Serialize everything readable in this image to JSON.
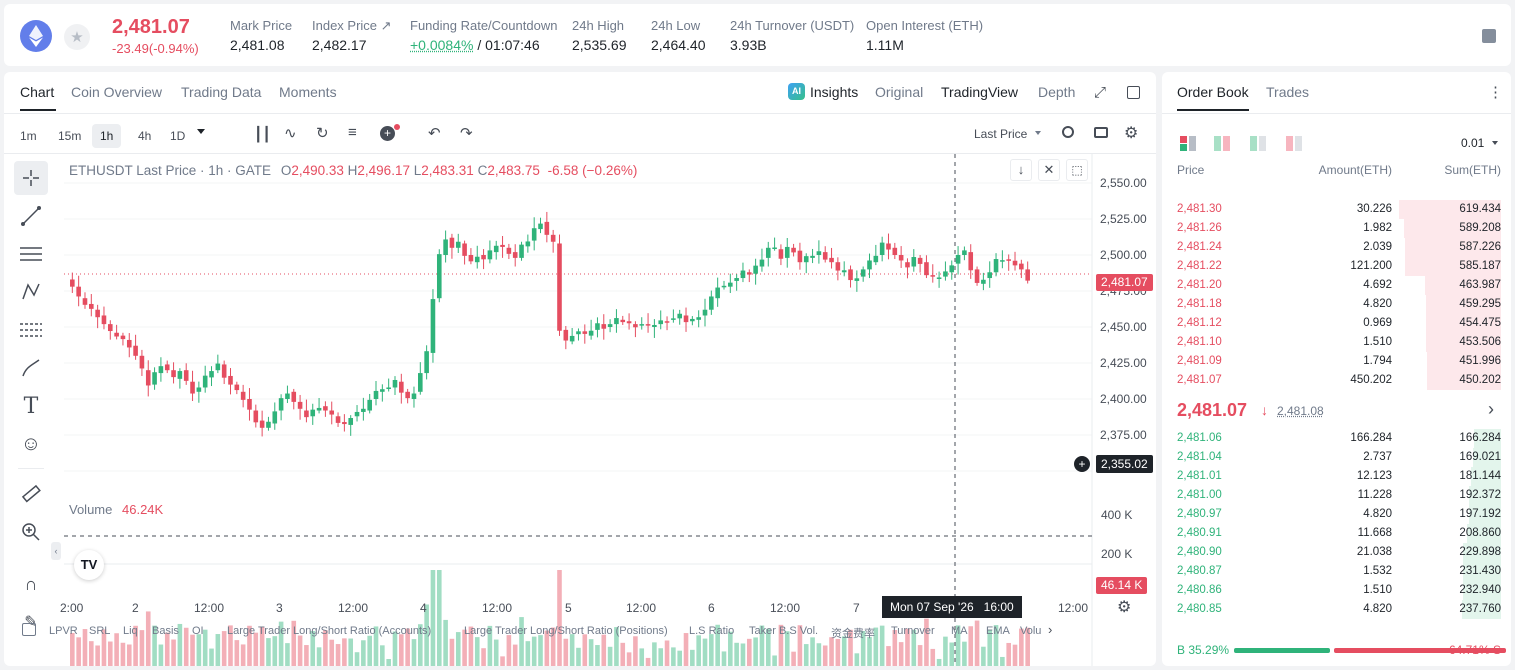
{
  "header": {
    "last_price": "2,481.07",
    "change": "-23.49(-0.94%)",
    "stats": [
      {
        "label": "Mark Price",
        "value": "2,481.08"
      },
      {
        "label": "Index Price ↗",
        "value": "2,482.17"
      },
      {
        "label": "Funding Rate/Countdown",
        "value_green": "+0.0084%",
        "value": "/ 01:07:46"
      },
      {
        "label": "24h High",
        "value": "2,535.69"
      },
      {
        "label": "24h Low",
        "value": "2,464.40"
      },
      {
        "label": "24h Turnover (USDT)",
        "value": "3.93B"
      },
      {
        "label": "Open Interest (ETH)",
        "value": "1.11M"
      }
    ]
  },
  "chart_tabs": [
    "Chart",
    "Coin Overview",
    "Trading Data",
    "Moments"
  ],
  "view_tabs": {
    "insights": "Insights",
    "original": "Original",
    "tradingview": "TradingView",
    "depth": "Depth"
  },
  "timeframes": [
    "1m",
    "15m",
    "1h",
    "4h",
    "1D"
  ],
  "price_type": "Last Price",
  "legend": {
    "symbol": "ETHUSDT Last Price · 1h · GATE",
    "o_l": "O",
    "o": "2,490.33",
    "h_l": "H",
    "h": "2,496.17",
    "l_l": "L",
    "l": "2,483.31",
    "c_l": "C",
    "c": "2,483.75",
    "chg": "-6.58 (−0.26%)"
  },
  "y_ticks": [
    "2,550.00",
    "2,525.00",
    "2,500.00",
    "2,475.00",
    "2,450.00",
    "2,425.00",
    "2,400.00",
    "2,375.00"
  ],
  "last_price_tag": "2,481.07",
  "crosshair_price": "2,355.02",
  "volume": {
    "label": "Volume",
    "value": "46.24K",
    "ticks": [
      "400 K",
      "200 K"
    ],
    "last_tag": "46.14 K"
  },
  "x_ticks": [
    "2:00",
    "2",
    "12:00",
    "3",
    "12:00",
    "4",
    "12:00",
    "5",
    "12:00",
    "6",
    "12:00",
    "7",
    "12:00"
  ],
  "crosshair_time": "Mon 07 Sep '26   16:00",
  "indicators": [
    "LPVR",
    "SRL",
    "Liq",
    "Basis",
    "OI",
    "Large Trader Long/Short Ratio (Accounts)",
    "Large Trader Long/Short Ratio (Positions)",
    "L.S Ratio",
    "Taker B.S Vol.",
    "资金费率",
    "Turnover",
    "MA",
    "EMA",
    "Volu"
  ],
  "orderbook": {
    "tabs": [
      "Order Book",
      "Trades"
    ],
    "precision": "0.01",
    "headers": [
      "Price",
      "Amount(ETH)",
      "Sum(ETH)"
    ],
    "asks": [
      [
        "2,481.30",
        "30.226",
        "619.434"
      ],
      [
        "2,481.26",
        "1.982",
        "589.208"
      ],
      [
        "2,481.24",
        "2.039",
        "587.226"
      ],
      [
        "2,481.22",
        "121.200",
        "585.187"
      ],
      [
        "2,481.20",
        "4.692",
        "463.987"
      ],
      [
        "2,481.18",
        "4.820",
        "459.295"
      ],
      [
        "2,481.12",
        "0.969",
        "454.475"
      ],
      [
        "2,481.10",
        "1.510",
        "453.506"
      ],
      [
        "2,481.09",
        "1.794",
        "451.996"
      ],
      [
        "2,481.07",
        "450.202",
        "450.202"
      ]
    ],
    "mid": {
      "price": "2,481.07",
      "mark": "2,481.08"
    },
    "bids": [
      [
        "2,481.06",
        "166.284",
        "166.284"
      ],
      [
        "2,481.04",
        "2.737",
        "169.021"
      ],
      [
        "2,481.01",
        "12.123",
        "181.144"
      ],
      [
        "2,481.00",
        "11.228",
        "192.372"
      ],
      [
        "2,480.97",
        "4.820",
        "197.192"
      ],
      [
        "2,480.91",
        "11.668",
        "208.860"
      ],
      [
        "2,480.90",
        "21.038",
        "229.898"
      ],
      [
        "2,480.87",
        "1.532",
        "231.430"
      ],
      [
        "2,480.86",
        "1.510",
        "232.940"
      ],
      [
        "2,480.85",
        "4.820",
        "237.760"
      ]
    ],
    "buy_pct": "B 35.29%",
    "sell_pct": "64.71% S",
    "buy_ratio": 0.3529
  },
  "colors": {
    "up": "#2fb37a",
    "down": "#e54d60"
  }
}
